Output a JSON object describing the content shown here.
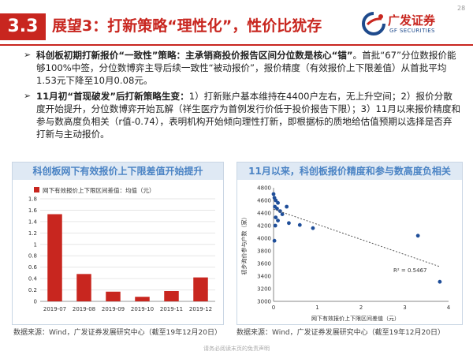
{
  "header": {
    "section_number": "3.3",
    "title": "展望3：打新策略“理性化”，性价比犹存",
    "page_number": "28"
  },
  "logo": {
    "name_cn": "广发证券",
    "name_en": "GF SECURITIES"
  },
  "bullets": [
    {
      "bold": "科创板初期打新报价“一致性”策略：主承销商投价报告区间分位数是核心“锚”",
      "text": "。首批“67”分位数报价能够100%中签，分位数博弈主导后续一致性“被动报价”，报价精度（有效报价上下限差值）从首批平均1.53元下降至10月0.08元。"
    },
    {
      "bold": "11月初“首现破发”后打新策略生变：",
      "text": "1）打新账户基本维持在4400户左右，无上升空间；2）报价分散度开始提升，分位数博弈开始瓦解（祥生医疗为首例发行价低于投价报告下限）；3）11月以来报价精度和参与数高度负相关（r值-0.74），表明机构开始倾向理性打新，即根据标的质地给估值预期以选择是否弃打新与主动报价。"
    }
  ],
  "chart_left": {
    "header": "科创板网下有效报价上下限差值开始提升",
    "legend": "网下有效报价上下限区间差值：均值（元）",
    "source": "数据来源：Wind，广发证券发展研究中心（截至19年12月20日）"
  },
  "chart_right": {
    "header": "11月以来，科创板报价精度和参与数高度负相关",
    "r2_label": "R² = 0.5467",
    "source": "数据来源：Wind，广发证券发展研究中心（截至19年12月20日）"
  },
  "chart_data": [
    {
      "type": "bar",
      "categories": [
        "2019-07",
        "2019-08",
        "2019-09",
        "2019-10",
        "2019-11",
        "2019-12"
      ],
      "series": [
        {
          "name": "网下有效报价上下限区间差值：均值（元）",
          "values": [
            1.53,
            0.48,
            0.17,
            0.08,
            0.18,
            0.42
          ]
        }
      ],
      "ylim": [
        0,
        1.8
      ],
      "yticks": [
        "0",
        "0.2",
        "0.4",
        "0.6",
        "0.8",
        "1",
        "1.2",
        "1.4",
        "1.6",
        "1.8"
      ],
      "color": "#c8261f"
    },
    {
      "type": "scatter",
      "xlabel": "网下有效报价上下限区间差值（元）",
      "ylabel": "初步询价参与户数（家）",
      "xlim": [
        0,
        4
      ],
      "ylim": [
        3000,
        4800
      ],
      "xticks": [
        "0",
        "1",
        "2",
        "3",
        "4"
      ],
      "yticks": [
        "3000",
        "3200",
        "3400",
        "3600",
        "3800",
        "4000",
        "4200",
        "4400",
        "4600",
        "4800"
      ],
      "points": [
        {
          "x": 0.0,
          "y": 4700
        },
        {
          "x": 0.02,
          "y": 4640
        },
        {
          "x": 0.05,
          "y": 4600
        },
        {
          "x": 0.1,
          "y": 4560
        },
        {
          "x": 0.03,
          "y": 4500
        },
        {
          "x": 0.08,
          "y": 4470
        },
        {
          "x": 0.15,
          "y": 4430
        },
        {
          "x": 0.2,
          "y": 4380
        },
        {
          "x": 0.3,
          "y": 4500
        },
        {
          "x": 0.05,
          "y": 4330
        },
        {
          "x": 0.1,
          "y": 4280
        },
        {
          "x": 0.35,
          "y": 4240
        },
        {
          "x": 0.6,
          "y": 4210
        },
        {
          "x": 0.9,
          "y": 4160
        },
        {
          "x": 0.04,
          "y": 4200
        },
        {
          "x": 0.02,
          "y": 3960
        },
        {
          "x": 3.3,
          "y": 4040
        },
        {
          "x": 3.8,
          "y": 3310
        }
      ],
      "trendline": {
        "x": [
          0,
          3.8
        ],
        "y": [
          4460,
          3550
        ]
      },
      "color": "#1f4e99"
    }
  ],
  "footer": "请务必阅读末页的免责声明"
}
